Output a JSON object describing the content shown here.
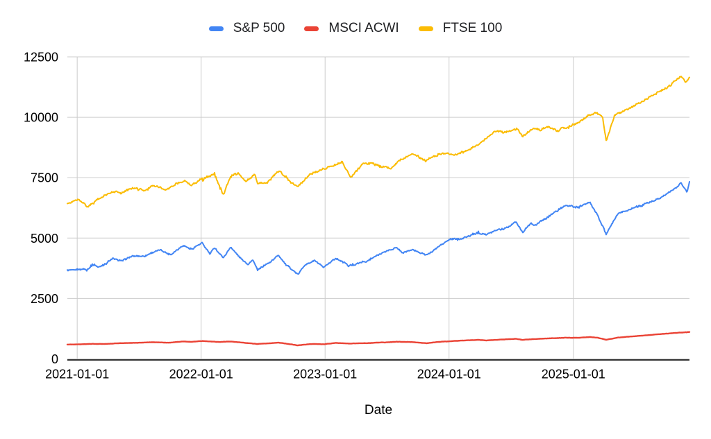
{
  "chart_data": {
    "type": "line",
    "title": "",
    "xlabel": "Date",
    "ylabel": "",
    "legend_position": "top",
    "grid": true,
    "ylim": [
      0,
      12500
    ],
    "y_ticks": [
      0,
      2500,
      5000,
      7500,
      10000,
      12500
    ],
    "x_ticks": [
      "2021-01-01",
      "2022-01-01",
      "2023-01-01",
      "2024-01-01",
      "2025-01-01"
    ],
    "x_range": [
      "2020-12-03",
      "2025-12-09"
    ],
    "series": [
      {
        "name": "S&P 500",
        "color": "#4285F4",
        "points": [
          [
            "2020-12-03",
            3660
          ],
          [
            "2021-01-04",
            3700
          ],
          [
            "2021-01-29",
            3715
          ],
          [
            "2021-02-16",
            3930
          ],
          [
            "2021-03-04",
            3770
          ],
          [
            "2021-04-16",
            4170
          ],
          [
            "2021-05-12",
            4060
          ],
          [
            "2021-06-14",
            4250
          ],
          [
            "2021-07-19",
            4260
          ],
          [
            "2021-08-16",
            4450
          ],
          [
            "2021-09-02",
            4520
          ],
          [
            "2021-10-04",
            4310
          ],
          [
            "2021-11-08",
            4700
          ],
          [
            "2021-12-03",
            4540
          ],
          [
            "2022-01-04",
            4800
          ],
          [
            "2022-01-27",
            4340
          ],
          [
            "2022-02-09",
            4590
          ],
          [
            "2022-03-08",
            4180
          ],
          [
            "2022-03-29",
            4630
          ],
          [
            "2022-04-29",
            4140
          ],
          [
            "2022-05-20",
            3910
          ],
          [
            "2022-06-02",
            4120
          ],
          [
            "2022-06-16",
            3680
          ],
          [
            "2022-07-01",
            3800
          ],
          [
            "2022-08-16",
            4300
          ],
          [
            "2022-09-06",
            3920
          ],
          [
            "2022-10-13",
            3500
          ],
          [
            "2022-11-01",
            3870
          ],
          [
            "2022-12-01",
            4080
          ],
          [
            "2022-12-28",
            3790
          ],
          [
            "2023-02-02",
            4180
          ],
          [
            "2023-03-13",
            3870
          ],
          [
            "2023-05-04",
            4070
          ],
          [
            "2023-06-30",
            4460
          ],
          [
            "2023-07-31",
            4610
          ],
          [
            "2023-08-18",
            4390
          ],
          [
            "2023-09-14",
            4520
          ],
          [
            "2023-10-27",
            4300
          ],
          [
            "2023-12-01",
            4650
          ],
          [
            "2024-01-05",
            4950
          ],
          [
            "2024-02-13",
            5000
          ],
          [
            "2024-03-28",
            5260
          ],
          [
            "2024-04-19",
            5140
          ],
          [
            "2024-05-21",
            5340
          ],
          [
            "2024-06-28",
            5500
          ],
          [
            "2024-07-16",
            5670
          ],
          [
            "2024-08-05",
            5240
          ],
          [
            "2024-08-30",
            5650
          ],
          [
            "2024-09-06",
            5500
          ],
          [
            "2024-10-18",
            5900
          ],
          [
            "2024-11-11",
            6150
          ],
          [
            "2024-12-06",
            6350
          ],
          [
            "2025-01-13",
            6300
          ],
          [
            "2025-02-19",
            6460
          ],
          [
            "2025-03-13",
            5950
          ],
          [
            "2025-04-08",
            5160
          ],
          [
            "2025-05-12",
            6010
          ],
          [
            "2025-06-27",
            6250
          ],
          [
            "2025-07-28",
            6420
          ],
          [
            "2025-08-29",
            6560
          ],
          [
            "2025-09-30",
            6800
          ],
          [
            "2025-10-28",
            7050
          ],
          [
            "2025-11-14",
            7280
          ],
          [
            "2025-12-02",
            6900
          ],
          [
            "2025-12-09",
            7340
          ]
        ]
      },
      {
        "name": "MSCI ACWI",
        "color": "#EA4335",
        "points": [
          [
            "2020-12-03",
            592
          ],
          [
            "2021-01-04",
            602
          ],
          [
            "2021-02-15",
            626
          ],
          [
            "2021-03-25",
            620
          ],
          [
            "2021-05-07",
            650
          ],
          [
            "2021-06-28",
            668
          ],
          [
            "2021-08-13",
            690
          ],
          [
            "2021-09-28",
            672
          ],
          [
            "2021-11-08",
            724
          ],
          [
            "2021-12-01",
            706
          ],
          [
            "2022-01-04",
            742
          ],
          [
            "2022-02-23",
            700
          ],
          [
            "2022-03-29",
            724
          ],
          [
            "2022-05-19",
            652
          ],
          [
            "2022-06-16",
            618
          ],
          [
            "2022-08-16",
            674
          ],
          [
            "2022-10-12",
            566
          ],
          [
            "2022-11-25",
            620
          ],
          [
            "2022-12-28",
            606
          ],
          [
            "2023-02-02",
            662
          ],
          [
            "2023-03-13",
            634
          ],
          [
            "2023-05-04",
            656
          ],
          [
            "2023-06-15",
            680
          ],
          [
            "2023-07-31",
            710
          ],
          [
            "2023-09-14",
            696
          ],
          [
            "2023-10-27",
            648
          ],
          [
            "2023-12-01",
            704
          ],
          [
            "2024-01-17",
            744
          ],
          [
            "2024-02-23",
            768
          ],
          [
            "2024-03-28",
            788
          ],
          [
            "2024-04-19",
            764
          ],
          [
            "2024-06-06",
            804
          ],
          [
            "2024-07-16",
            830
          ],
          [
            "2024-08-05",
            792
          ],
          [
            "2024-09-06",
            820
          ],
          [
            "2024-10-18",
            850
          ],
          [
            "2024-11-11",
            864
          ],
          [
            "2024-12-06",
            880
          ],
          [
            "2025-01-13",
            874
          ],
          [
            "2025-02-19",
            904
          ],
          [
            "2025-03-13",
            880
          ],
          [
            "2025-04-08",
            790
          ],
          [
            "2025-05-12",
            884
          ],
          [
            "2025-06-27",
            934
          ],
          [
            "2025-07-28",
            970
          ],
          [
            "2025-08-29",
            1008
          ],
          [
            "2025-09-30",
            1042
          ],
          [
            "2025-10-28",
            1075
          ],
          [
            "2025-11-21",
            1098
          ],
          [
            "2025-12-09",
            1118
          ]
        ]
      },
      {
        "name": "FTSE 100",
        "color": "#FBBC04",
        "points": [
          [
            "2020-12-03",
            6430
          ],
          [
            "2021-01-06",
            6620
          ],
          [
            "2021-01-29",
            6330
          ],
          [
            "2021-03-01",
            6590
          ],
          [
            "2021-04-16",
            6940
          ],
          [
            "2021-05-13",
            6860
          ],
          [
            "2021-06-14",
            7130
          ],
          [
            "2021-07-19",
            6960
          ],
          [
            "2021-08-13",
            7170
          ],
          [
            "2021-09-20",
            7000
          ],
          [
            "2021-10-19",
            7230
          ],
          [
            "2021-11-12",
            7360
          ],
          [
            "2021-12-03",
            7180
          ],
          [
            "2022-01-17",
            7560
          ],
          [
            "2022-02-10",
            7690
          ],
          [
            "2022-03-07",
            6780
          ],
          [
            "2022-03-29",
            7540
          ],
          [
            "2022-04-21",
            7700
          ],
          [
            "2022-05-12",
            7320
          ],
          [
            "2022-06-08",
            7640
          ],
          [
            "2022-06-17",
            7240
          ],
          [
            "2022-07-15",
            7310
          ],
          [
            "2022-08-19",
            7800
          ],
          [
            "2022-09-23",
            7300
          ],
          [
            "2022-10-12",
            7130
          ],
          [
            "2022-11-18",
            7630
          ],
          [
            "2022-12-15",
            7800
          ],
          [
            "2023-01-27",
            8010
          ],
          [
            "2023-02-20",
            8160
          ],
          [
            "2023-03-17",
            7500
          ],
          [
            "2023-04-21",
            8060
          ],
          [
            "2023-05-19",
            8110
          ],
          [
            "2023-06-16",
            8010
          ],
          [
            "2023-07-10",
            7870
          ],
          [
            "2023-08-10",
            8210
          ],
          [
            "2023-09-15",
            8500
          ],
          [
            "2023-10-27",
            8230
          ],
          [
            "2023-11-17",
            8390
          ],
          [
            "2023-12-14",
            8510
          ],
          [
            "2024-01-17",
            8440
          ],
          [
            "2024-02-15",
            8570
          ],
          [
            "2024-03-20",
            8810
          ],
          [
            "2024-04-22",
            9160
          ],
          [
            "2024-05-15",
            9440
          ],
          [
            "2024-06-14",
            9360
          ],
          [
            "2024-07-18",
            9530
          ],
          [
            "2024-08-05",
            9190
          ],
          [
            "2024-08-30",
            9510
          ],
          [
            "2024-09-27",
            9490
          ],
          [
            "2024-10-21",
            9610
          ],
          [
            "2024-11-13",
            9430
          ],
          [
            "2024-12-12",
            9630
          ],
          [
            "2025-01-17",
            9760
          ],
          [
            "2025-02-14",
            10090
          ],
          [
            "2025-03-10",
            10190
          ],
          [
            "2025-03-28",
            10010
          ],
          [
            "2025-04-08",
            8980
          ],
          [
            "2025-05-02",
            10080
          ],
          [
            "2025-06-06",
            10290
          ],
          [
            "2025-07-11",
            10560
          ],
          [
            "2025-08-08",
            10790
          ],
          [
            "2025-09-12",
            11060
          ],
          [
            "2025-10-10",
            11330
          ],
          [
            "2025-11-14",
            11690
          ],
          [
            "2025-11-28",
            11460
          ],
          [
            "2025-12-09",
            11620
          ]
        ]
      }
    ]
  },
  "render": {
    "background": "#ffffff",
    "grid_color": "#cccccc",
    "axis_line_color": "#333333",
    "tick_text_color": "#000000",
    "legend_text_color": "#202124",
    "noise_amplitudes": [
      48,
      6,
      62
    ]
  }
}
